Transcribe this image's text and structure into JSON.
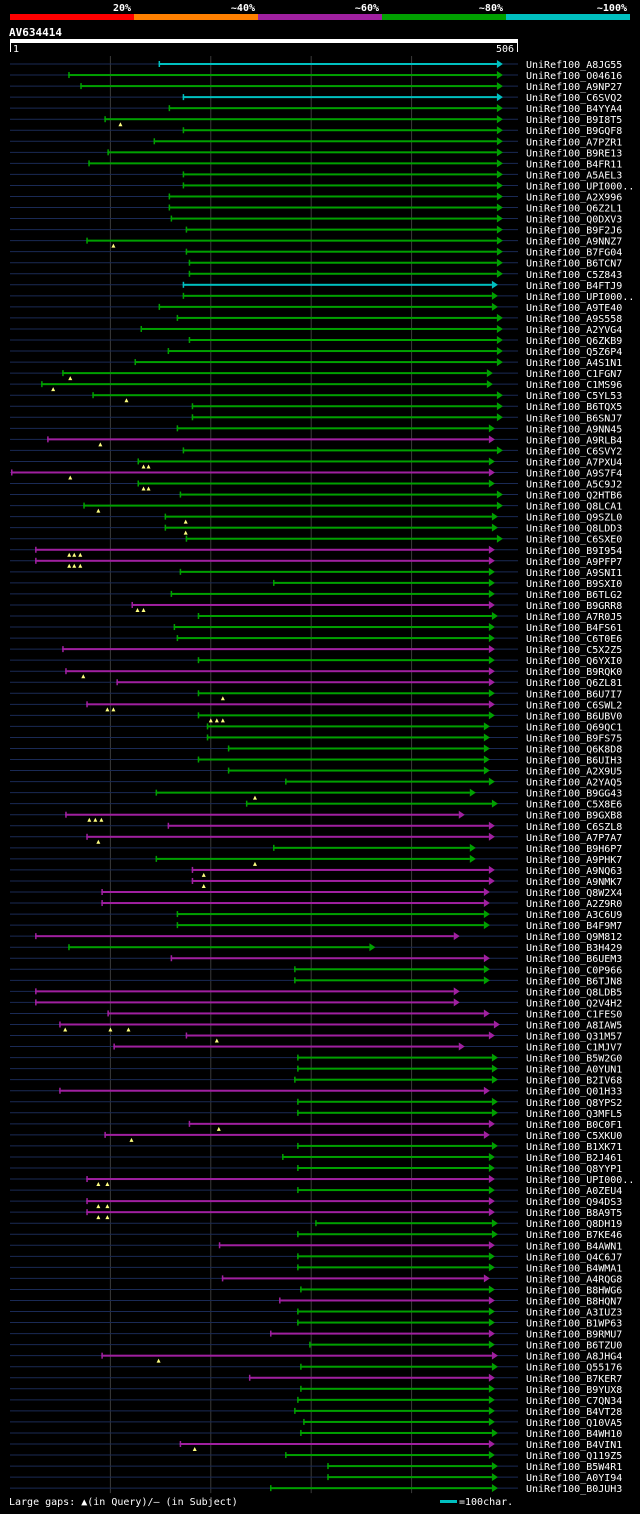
{
  "legend": {
    "identity_labels": [
      "20%",
      "~40%",
      "~60%",
      "~80%",
      "~100%"
    ],
    "identity_colors": [
      "#ff0000",
      "#ff8000",
      "#a020a0",
      "#00a000",
      "#00c0c0"
    ],
    "gaps_text": "Large gaps: ▲(in Query)/– (in Subject)",
    "scale_text": "=100char.",
    "scale_color": "#00c0c0"
  },
  "query": {
    "id": "AV634414",
    "start_label": "1",
    "end_label": "506",
    "length": 506
  },
  "chart_data": {
    "type": "alignment-overview",
    "query_length": 506,
    "x_gridlines": [
      100,
      200,
      300,
      400
    ],
    "colors": {
      "cyan": "#00c0c0",
      "green": "#00a000",
      "magenta": "#a020a0",
      "gap_marker": "#ffff80"
    },
    "hits": [
      {
        "id": "UniRef100_A8JG55",
        "start": 148,
        "end": 485,
        "color": "cyan"
      },
      {
        "id": "UniRef100_O04616",
        "start": 58,
        "end": 485,
        "color": "green"
      },
      {
        "id": "UniRef100_A9NP27",
        "start": 70,
        "end": 485,
        "color": "green"
      },
      {
        "id": "UniRef100_C6SVQ2",
        "start": 172,
        "end": 485,
        "color": "cyan"
      },
      {
        "id": "UniRef100_B4YYA4",
        "start": 158,
        "end": 485,
        "color": "green"
      },
      {
        "id": "UniRef100_B9I8T5",
        "start": 94,
        "end": 485,
        "color": "green",
        "markers": [
          110
        ]
      },
      {
        "id": "UniRef100_B9GQF8",
        "start": 172,
        "end": 485,
        "color": "green"
      },
      {
        "id": "UniRef100_A7PZR1",
        "start": 143,
        "end": 485,
        "color": "green"
      },
      {
        "id": "UniRef100_B9RE13",
        "start": 97,
        "end": 485,
        "color": "green"
      },
      {
        "id": "UniRef100_B4FR11",
        "start": 78,
        "end": 485,
        "color": "green"
      },
      {
        "id": "UniRef100_A5AEL3",
        "start": 172,
        "end": 485,
        "color": "green"
      },
      {
        "id": "UniRef100_UPI000..",
        "start": 172,
        "end": 485,
        "color": "green"
      },
      {
        "id": "UniRef100_A2X996",
        "start": 158,
        "end": 485,
        "color": "green"
      },
      {
        "id": "UniRef100_Q6Z2L1",
        "start": 158,
        "end": 485,
        "color": "green"
      },
      {
        "id": "UniRef100_Q0DXV3",
        "start": 160,
        "end": 485,
        "color": "green"
      },
      {
        "id": "UniRef100_B9F2J6",
        "start": 175,
        "end": 485,
        "color": "green"
      },
      {
        "id": "UniRef100_A9NNZ7",
        "start": 76,
        "end": 485,
        "color": "green",
        "markers": [
          103
        ]
      },
      {
        "id": "UniRef100_B7FG04",
        "start": 175,
        "end": 485,
        "color": "green"
      },
      {
        "id": "UniRef100_B6TCN7",
        "start": 178,
        "end": 485,
        "color": "green"
      },
      {
        "id": "UniRef100_C5Z843",
        "start": 178,
        "end": 485,
        "color": "green"
      },
      {
        "id": "UniRef100_B4FTJ9",
        "start": 172,
        "end": 480,
        "color": "cyan"
      },
      {
        "id": "UniRef100_UPI000..",
        "start": 172,
        "end": 480,
        "color": "green"
      },
      {
        "id": "UniRef100_A9TE40",
        "start": 148,
        "end": 480,
        "color": "green"
      },
      {
        "id": "UniRef100_A9S558",
        "start": 166,
        "end": 485,
        "color": "green"
      },
      {
        "id": "UniRef100_A2YVG4",
        "start": 130,
        "end": 485,
        "color": "green"
      },
      {
        "id": "UniRef100_Q6ZKB9",
        "start": 178,
        "end": 485,
        "color": "green"
      },
      {
        "id": "UniRef100_Q5Z6P4",
        "start": 157,
        "end": 485,
        "color": "green"
      },
      {
        "id": "UniRef100_A4S1N1",
        "start": 124,
        "end": 485,
        "color": "green"
      },
      {
        "id": "UniRef100_C1FGN7",
        "start": 52,
        "end": 475,
        "color": "green",
        "markers": [
          60
        ]
      },
      {
        "id": "UniRef100_C1MS96",
        "start": 31,
        "end": 475,
        "color": "green",
        "markers": [
          43
        ]
      },
      {
        "id": "UniRef100_C5YL53",
        "start": 82,
        "end": 485,
        "color": "green",
        "markers": [
          116
        ]
      },
      {
        "id": "UniRef100_B6TQX5",
        "start": 181,
        "end": 485,
        "color": "green"
      },
      {
        "id": "UniRef100_B6SNJ7",
        "start": 181,
        "end": 485,
        "color": "green"
      },
      {
        "id": "UniRef100_A9NN45",
        "start": 166,
        "end": 477,
        "color": "green"
      },
      {
        "id": "UniRef100_A9RLB4",
        "start": 37,
        "end": 477,
        "color": "magenta",
        "markers": [
          90
        ]
      },
      {
        "id": "UniRef100_C6SVY2",
        "start": 172,
        "end": 485,
        "color": "green"
      },
      {
        "id": "UniRef100_A7PXU4",
        "start": 127,
        "end": 477,
        "color": "green",
        "markers": [
          133,
          138
        ]
      },
      {
        "id": "UniRef100_A9S7F4",
        "start": 1,
        "end": 477,
        "color": "magenta",
        "markers": [
          60
        ]
      },
      {
        "id": "UniRef100_A5C9J2",
        "start": 127,
        "end": 477,
        "color": "green",
        "markers": [
          133,
          138
        ]
      },
      {
        "id": "UniRef100_Q2HTB6",
        "start": 169,
        "end": 485,
        "color": "green"
      },
      {
        "id": "UniRef100_Q8LCA1",
        "start": 73,
        "end": 485,
        "color": "green",
        "markers": [
          88
        ]
      },
      {
        "id": "UniRef100_Q9SZL0",
        "start": 154,
        "end": 480,
        "color": "green",
        "markers": [
          175
        ]
      },
      {
        "id": "UniRef100_Q8LDD3",
        "start": 154,
        "end": 480,
        "color": "green",
        "markers": [
          175
        ]
      },
      {
        "id": "UniRef100_C6SXE0",
        "start": 175,
        "end": 485,
        "color": "green"
      },
      {
        "id": "UniRef100_B9I954",
        "start": 25,
        "end": 477,
        "color": "magenta",
        "markers": [
          59,
          64,
          70
        ]
      },
      {
        "id": "UniRef100_A9PFP7",
        "start": 25,
        "end": 477,
        "color": "magenta",
        "markers": [
          59,
          64,
          70
        ]
      },
      {
        "id": "UniRef100_A9SNI1",
        "start": 169,
        "end": 477,
        "color": "green"
      },
      {
        "id": "UniRef100_B9SXI0",
        "start": 262,
        "end": 477,
        "color": "green"
      },
      {
        "id": "UniRef100_B6TLG2",
        "start": 160,
        "end": 477,
        "color": "green"
      },
      {
        "id": "UniRef100_B9GRR8",
        "start": 121,
        "end": 477,
        "color": "magenta",
        "markers": [
          127,
          133
        ]
      },
      {
        "id": "UniRef100_A7R0J5",
        "start": 187,
        "end": 480,
        "color": "green"
      },
      {
        "id": "UniRef100_B4FS61",
        "start": 163,
        "end": 477,
        "color": "green"
      },
      {
        "id": "UniRef100_C6T0E6",
        "start": 166,
        "end": 477,
        "color": "green"
      },
      {
        "id": "UniRef100_C5X2Z5",
        "start": 52,
        "end": 477,
        "color": "magenta"
      },
      {
        "id": "UniRef100_Q6YXI0",
        "start": 187,
        "end": 477,
        "color": "green"
      },
      {
        "id": "UniRef100_B9RQK0",
        "start": 55,
        "end": 477,
        "color": "magenta",
        "markers": [
          73
        ]
      },
      {
        "id": "UniRef100_Q6ZL81",
        "start": 106,
        "end": 477,
        "color": "magenta"
      },
      {
        "id": "UniRef100_B6U7I7",
        "start": 187,
        "end": 477,
        "color": "green",
        "markers": [
          212
        ]
      },
      {
        "id": "UniRef100_C6SWL2",
        "start": 76,
        "end": 477,
        "color": "magenta",
        "markers": [
          97,
          103
        ]
      },
      {
        "id": "UniRef100_B6UBV0",
        "start": 187,
        "end": 477,
        "color": "green",
        "markers": [
          200,
          206,
          212
        ]
      },
      {
        "id": "UniRef100_Q69QC1",
        "start": 196,
        "end": 472,
        "color": "green"
      },
      {
        "id": "UniRef100_B9FS75",
        "start": 196,
        "end": 472,
        "color": "green"
      },
      {
        "id": "UniRef100_Q6K8D8",
        "start": 217,
        "end": 472,
        "color": "green"
      },
      {
        "id": "UniRef100_B6UIH3",
        "start": 187,
        "end": 472,
        "color": "green"
      },
      {
        "id": "UniRef100_A2X9U5",
        "start": 217,
        "end": 472,
        "color": "green"
      },
      {
        "id": "UniRef100_A2YAQ5",
        "start": 274,
        "end": 477,
        "color": "green"
      },
      {
        "id": "UniRef100_B9GG43",
        "start": 145,
        "end": 458,
        "color": "green",
        "markers": [
          244
        ]
      },
      {
        "id": "UniRef100_C5X8E6",
        "start": 235,
        "end": 480,
        "color": "green"
      },
      {
        "id": "UniRef100_B9GXB8",
        "start": 55,
        "end": 447,
        "color": "magenta",
        "markers": [
          79,
          85,
          91
        ]
      },
      {
        "id": "UniRef100_C6SZL8",
        "start": 157,
        "end": 477,
        "color": "magenta"
      },
      {
        "id": "UniRef100_A7P7A7",
        "start": 76,
        "end": 477,
        "color": "magenta",
        "markers": [
          88
        ]
      },
      {
        "id": "UniRef100_B9H6P7",
        "start": 262,
        "end": 458,
        "color": "green"
      },
      {
        "id": "UniRef100_A9PHK7",
        "start": 145,
        "end": 458,
        "color": "green",
        "markers": [
          244
        ]
      },
      {
        "id": "UniRef100_A9NQ63",
        "start": 181,
        "end": 477,
        "color": "magenta",
        "markers": [
          193
        ]
      },
      {
        "id": "UniRef100_A9NMK7",
        "start": 181,
        "end": 477,
        "color": "magenta",
        "markers": [
          193
        ]
      },
      {
        "id": "UniRef100_Q8W2X4",
        "start": 91,
        "end": 472,
        "color": "magenta"
      },
      {
        "id": "UniRef100_A2Z9R0",
        "start": 91,
        "end": 472,
        "color": "magenta"
      },
      {
        "id": "UniRef100_A3C6U9",
        "start": 166,
        "end": 472,
        "color": "green"
      },
      {
        "id": "UniRef100_B4F9M7",
        "start": 166,
        "end": 472,
        "color": "green"
      },
      {
        "id": "UniRef100_Q9M812",
        "start": 25,
        "end": 442,
        "color": "magenta"
      },
      {
        "id": "UniRef100_B3H429",
        "start": 58,
        "end": 358,
        "color": "green"
      },
      {
        "id": "UniRef100_B6UEM3",
        "start": 160,
        "end": 472,
        "color": "magenta"
      },
      {
        "id": "UniRef100_C0P966",
        "start": 283,
        "end": 472,
        "color": "green"
      },
      {
        "id": "UniRef100_B6TJN8",
        "start": 283,
        "end": 472,
        "color": "green"
      },
      {
        "id": "UniRef100_Q8LDB5",
        "start": 25,
        "end": 442,
        "color": "magenta"
      },
      {
        "id": "UniRef100_Q2V4H2",
        "start": 25,
        "end": 442,
        "color": "magenta"
      },
      {
        "id": "UniRef100_C1FES0",
        "start": 97,
        "end": 472,
        "color": "magenta"
      },
      {
        "id": "UniRef100_A8IAW5",
        "start": 49,
        "end": 482,
        "color": "magenta",
        "markers": [
          55,
          100,
          118
        ]
      },
      {
        "id": "UniRef100_Q31M57",
        "start": 175,
        "end": 477,
        "color": "magenta",
        "markers": [
          206
        ]
      },
      {
        "id": "UniRef100_C1MJV7",
        "start": 103,
        "end": 447,
        "color": "magenta"
      },
      {
        "id": "UniRef100_B5W2G0",
        "start": 286,
        "end": 480,
        "color": "green"
      },
      {
        "id": "UniRef100_A0YUN1",
        "start": 286,
        "end": 480,
        "color": "green"
      },
      {
        "id": "UniRef100_B2IV68",
        "start": 283,
        "end": 480,
        "color": "green"
      },
      {
        "id": "UniRef100_Q01H33",
        "start": 49,
        "end": 472,
        "color": "magenta"
      },
      {
        "id": "UniRef100_Q8YPS2",
        "start": 286,
        "end": 480,
        "color": "green"
      },
      {
        "id": "UniRef100_Q3MFL5",
        "start": 286,
        "end": 480,
        "color": "green"
      },
      {
        "id": "UniRef100_B0C0F1",
        "start": 178,
        "end": 477,
        "color": "magenta",
        "markers": [
          208
        ]
      },
      {
        "id": "UniRef100_C5XKU0",
        "start": 94,
        "end": 472,
        "color": "magenta",
        "markers": [
          121
        ]
      },
      {
        "id": "UniRef100_B1XK71",
        "start": 286,
        "end": 480,
        "color": "green"
      },
      {
        "id": "UniRef100_B2J461",
        "start": 271,
        "end": 477,
        "color": "green"
      },
      {
        "id": "UniRef100_Q8YYP1",
        "start": 286,
        "end": 477,
        "color": "green"
      },
      {
        "id": "UniRef100_UPI000..",
        "start": 76,
        "end": 477,
        "color": "magenta",
        "markers": [
          88,
          97
        ]
      },
      {
        "id": "UniRef100_A0ZEU4",
        "start": 286,
        "end": 477,
        "color": "green"
      },
      {
        "id": "UniRef100_Q94DS3",
        "start": 76,
        "end": 477,
        "color": "magenta",
        "markers": [
          88,
          97
        ]
      },
      {
        "id": "UniRef100_B8A9T5",
        "start": 76,
        "end": 477,
        "color": "magenta",
        "markers": [
          88,
          97
        ]
      },
      {
        "id": "UniRef100_Q8DH19",
        "start": 304,
        "end": 480,
        "color": "green"
      },
      {
        "id": "UniRef100_B7KE46",
        "start": 286,
        "end": 480,
        "color": "green"
      },
      {
        "id": "UniRef100_B4AWN1",
        "start": 208,
        "end": 477,
        "color": "magenta"
      },
      {
        "id": "UniRef100_Q4C6J7",
        "start": 286,
        "end": 477,
        "color": "green"
      },
      {
        "id": "UniRef100_B4WMA1",
        "start": 286,
        "end": 477,
        "color": "green"
      },
      {
        "id": "UniRef100_A4RQG8",
        "start": 211,
        "end": 472,
        "color": "magenta"
      },
      {
        "id": "UniRef100_B8HWG6",
        "start": 289,
        "end": 477,
        "color": "green"
      },
      {
        "id": "UniRef100_B8HQN7",
        "start": 268,
        "end": 477,
        "color": "magenta"
      },
      {
        "id": "UniRef100_A3IUZ3",
        "start": 286,
        "end": 477,
        "color": "green"
      },
      {
        "id": "UniRef100_B1WP63",
        "start": 286,
        "end": 477,
        "color": "green"
      },
      {
        "id": "UniRef100_B9RMU7",
        "start": 259,
        "end": 477,
        "color": "magenta"
      },
      {
        "id": "UniRef100_B6TZU0",
        "start": 298,
        "end": 477,
        "color": "green"
      },
      {
        "id": "UniRef100_A8JHG4",
        "start": 91,
        "end": 480,
        "color": "magenta",
        "markers": [
          148
        ]
      },
      {
        "id": "UniRef100_Q55176",
        "start": 289,
        "end": 480,
        "color": "green"
      },
      {
        "id": "UniRef100_B7KER7",
        "start": 238,
        "end": 477,
        "color": "magenta"
      },
      {
        "id": "UniRef100_B9YUX8",
        "start": 289,
        "end": 477,
        "color": "green"
      },
      {
        "id": "UniRef100_C7QN34",
        "start": 286,
        "end": 477,
        "color": "green"
      },
      {
        "id": "UniRef100_B4VT28",
        "start": 283,
        "end": 477,
        "color": "green"
      },
      {
        "id": "UniRef100_Q10VA5",
        "start": 292,
        "end": 477,
        "color": "green"
      },
      {
        "id": "UniRef100_B4WH10",
        "start": 289,
        "end": 480,
        "color": "green"
      },
      {
        "id": "UniRef100_B4VIN1",
        "start": 169,
        "end": 477,
        "color": "magenta",
        "markers": [
          184
        ]
      },
      {
        "id": "UniRef100_Q119Z5",
        "start": 274,
        "end": 477,
        "color": "green"
      },
      {
        "id": "UniRef100_B5W4R1",
        "start": 316,
        "end": 480,
        "color": "green"
      },
      {
        "id": "UniRef100_A0YI94",
        "start": 316,
        "end": 480,
        "color": "green"
      },
      {
        "id": "UniRef100_B0JUH3",
        "start": 259,
        "end": 480,
        "color": "green"
      }
    ]
  }
}
